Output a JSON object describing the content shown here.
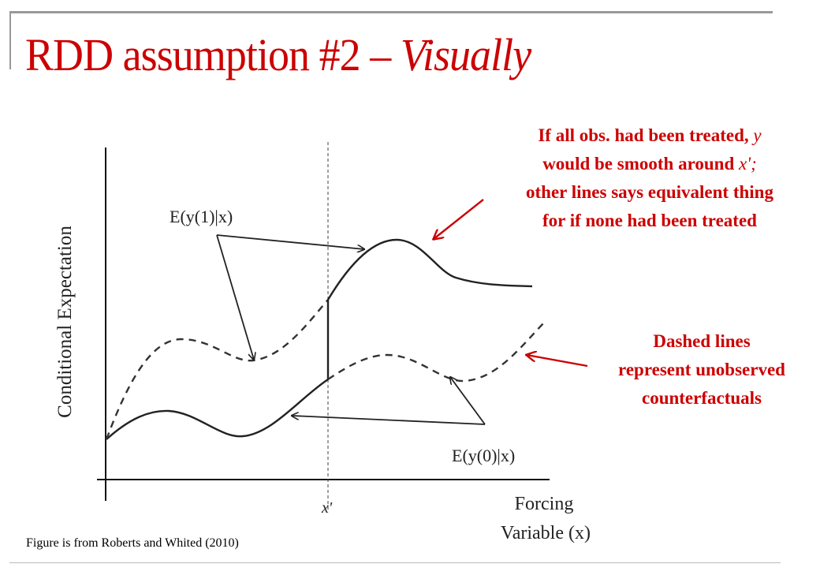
{
  "slide": {
    "title_main": "RDD assumption #2 – ",
    "title_italic": "Visually",
    "caption": "Figure is from Roberts and Whited (2010)"
  },
  "diagram": {
    "y_axis_label": "Conditional Expectation",
    "x_axis_label_line1": "Forcing",
    "x_axis_label_line2": "Variable (x)",
    "cutoff_label": "x'",
    "label_treated": "E(y(1)|x)",
    "label_untreated": "E(y(0)|x)"
  },
  "annotations": {
    "note1_line1": "If  all obs. had been treated,",
    "note1_y": "y",
    "note1_line2": "would be smooth around",
    "note1_x": "x';",
    "note1_line3": "other lines says equivalent thing",
    "note1_line4": "for if  none had been treated",
    "note2_line1": "Dashed lines",
    "note2_line2": "represent unobserved",
    "note2_line3": "counterfactuals"
  },
  "colors": {
    "accent": "#cc0000",
    "frame": "#999999",
    "ink": "#222222"
  }
}
